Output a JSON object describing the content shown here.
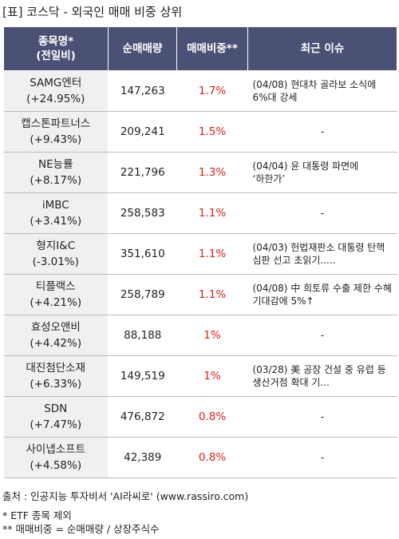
{
  "title": "[표] 코스닥 - 외국인 매매 비중 상위",
  "columns": {
    "name_line1": "종목명*",
    "name_line2": "(전일비)",
    "volume": "순매매량",
    "ratio": "매매비중**",
    "issue": "최근 이슈"
  },
  "rows": [
    {
      "name": "SAMG엔터",
      "change": "(+24.95%)",
      "volume": "147,263",
      "ratio": "1.7%",
      "issue": "(04/08) 현대차 골라보 소식에 6%대 강세"
    },
    {
      "name": "캡스톤파트너스",
      "change": "(+9.43%)",
      "volume": "209,241",
      "ratio": "1.5%",
      "issue": "-"
    },
    {
      "name": "NE능률",
      "change": "(+8.17%)",
      "volume": "221,796",
      "ratio": "1.3%",
      "issue": "(04/04) 윤 대통령 파면에 ‘하한가’"
    },
    {
      "name": "iMBC",
      "change": "(+3.41%)",
      "volume": "258,583",
      "ratio": "1.1%",
      "issue": "-"
    },
    {
      "name": "형지I&C",
      "change": "(-3.01%)",
      "volume": "351,610",
      "ratio": "1.1%",
      "issue": "(04/03) 헌법재판소 대통령 탄핵 심판 선고 초읽기....."
    },
    {
      "name": "티플랙스",
      "change": "(+4.21%)",
      "volume": "258,789",
      "ratio": "1.1%",
      "issue": "(04/08) 中 희토류 수출 제한 수혜 기대감에 5%↑"
    },
    {
      "name": "효성오앤비",
      "change": "(+4.42%)",
      "volume": "88,188",
      "ratio": "1%",
      "issue": "-"
    },
    {
      "name": "대진첨단소재",
      "change": "(+6.33%)",
      "volume": "149,519",
      "ratio": "1%",
      "issue": "(03/28) 美 공장 건설 중 유럽 등 생산거점 확대 기..."
    },
    {
      "name": "SDN",
      "change": "(+7.47%)",
      "volume": "476,872",
      "ratio": "0.8%",
      "issue": "-"
    },
    {
      "name": "사이냅소프트",
      "change": "(+4.58%)",
      "volume": "42,389",
      "ratio": "0.8%",
      "issue": "-"
    }
  ],
  "footer": {
    "source": "출처 : 인공지능 투자비서 'AI라씨로' (www.rassiro.com)",
    "note1": "* ETF 종목 제외",
    "note2": "** 매매비중 = 순매매량 / 상장주식수"
  },
  "colors": {
    "header_bg": "#4b5075",
    "ratio_text": "#e0211b",
    "name_bg": "#f0f0f0"
  }
}
